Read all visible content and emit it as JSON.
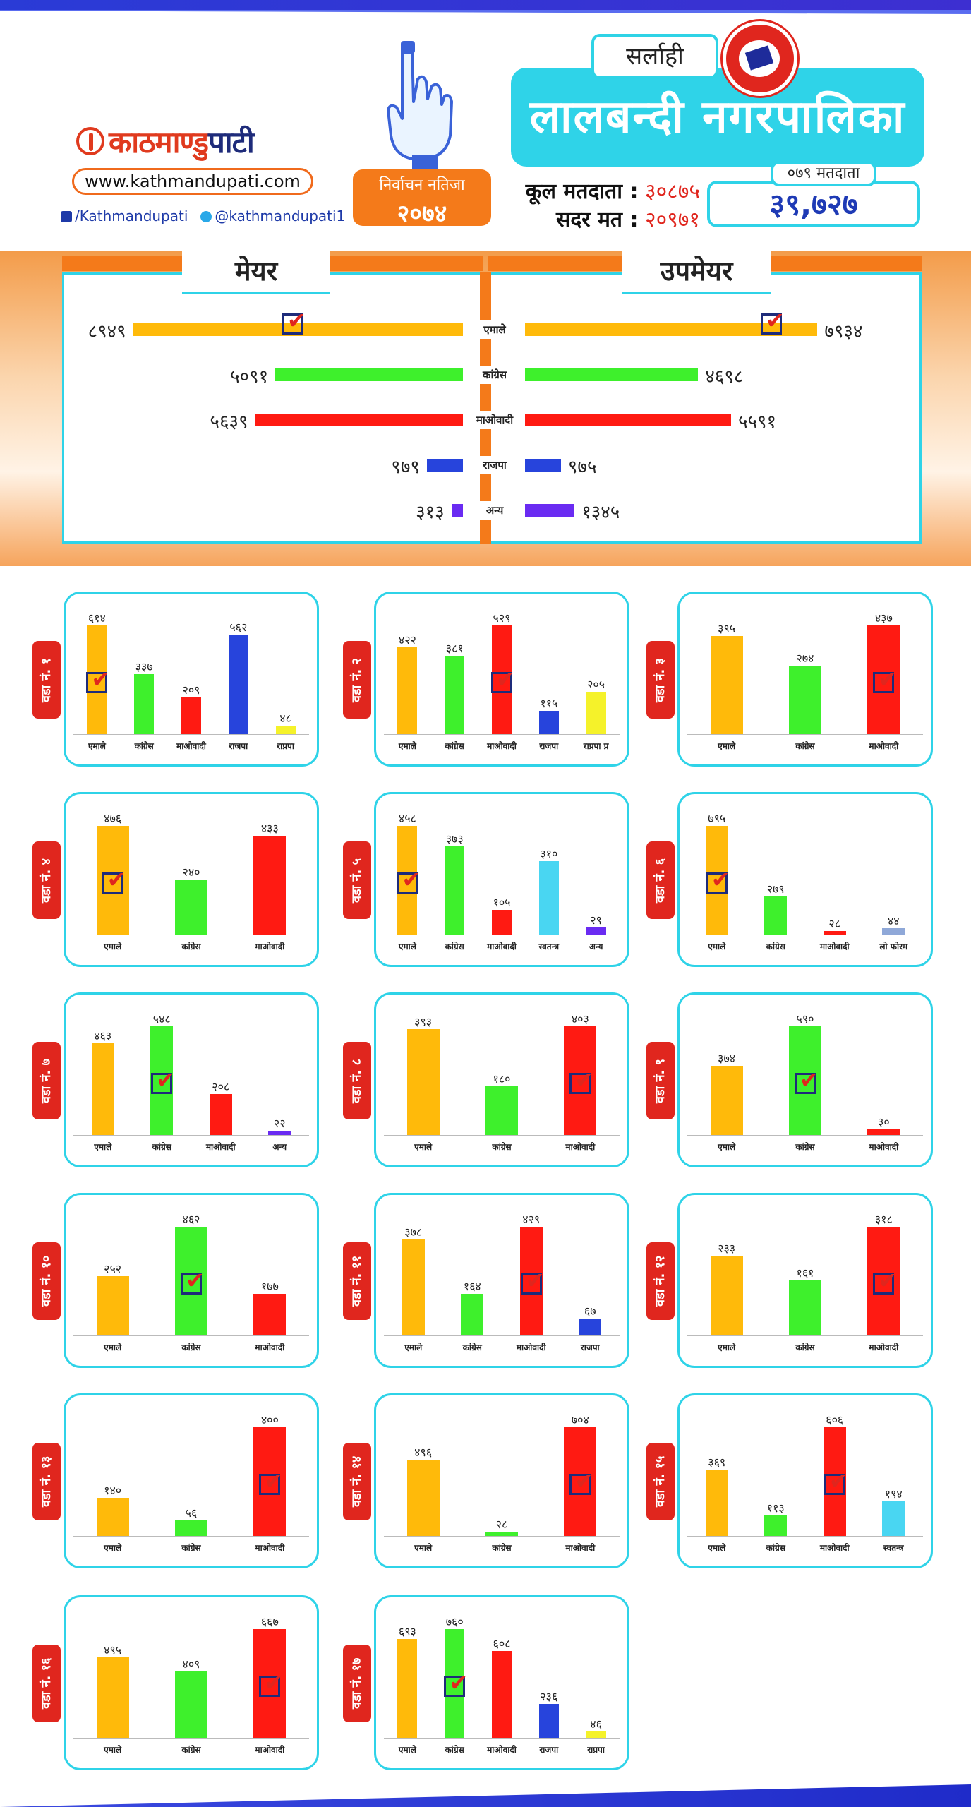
{
  "header": {
    "logo_main": "काठमाण्डु",
    "logo_accent": "पाटी",
    "website": "www.kathmandupati.com",
    "facebook": "/Kathmandupati",
    "twitter": "@kathmandupati1",
    "election_result_label": "निर्वाचन नतिजा",
    "election_year": "२०७४",
    "district": "सर्लाही",
    "municipality": "लालबन्दी नगरपालिका",
    "total_voters_label": "कूल मतदाता :",
    "total_voters_value": "३०८७५",
    "valid_votes_label": "सदर मत :",
    "valid_votes_value": "२०९७१",
    "voters_079_label": "०७९ मतदाता",
    "voters_079_value": "३९,७२७"
  },
  "colors": {
    "emale": "#ffba0a",
    "congress": "#3ef02c",
    "maoist": "#ff1a12",
    "rajpa": "#2744dc",
    "other_purple": "#6a2bf2",
    "yellow": "#f5f22a",
    "cyan": "#49d6f2",
    "grey_blue": "#8fa8d8",
    "accent_orange": "#f47a1a",
    "accent_cyan": "#2fd3e8",
    "ward_red": "#e0261e"
  },
  "chart_data": [
    {
      "type": "bar",
      "title": "मेयर",
      "orientation": "horizontal",
      "categories": [
        "एमाले",
        "कांग्रेस",
        "माओवादी",
        "राजपा",
        "अन्य"
      ],
      "values": [
        8949,
        5091,
        5639,
        979,
        313
      ],
      "labels": [
        "८९४९",
        "५०९१",
        "५६३९",
        "९७९",
        "३१३"
      ],
      "winner": "एमाले"
    },
    {
      "type": "bar",
      "title": "उपमेयर",
      "orientation": "horizontal",
      "categories": [
        "एमाले",
        "कांग्रेस",
        "माओवादी",
        "राजपा",
        "अन्य"
      ],
      "values": [
        7934,
        4698,
        5591,
        975,
        1345
      ],
      "labels": [
        "७९३४",
        "४६९८",
        "५५९१",
        "९७५",
        "१३४५"
      ],
      "winner": "एमाले"
    },
    {
      "type": "bar",
      "ward": "वडा नं. १",
      "categories": [
        "एमाले",
        "कांग्रेस",
        "माओवादी",
        "राजपा",
        "राप्रपा"
      ],
      "values": [
        614,
        337,
        209,
        562,
        48
      ],
      "labels": [
        "६१४",
        "३३७",
        "२०९",
        "५६२",
        "४८"
      ],
      "colors": [
        "emale",
        "congress",
        "maoist",
        "rajpa",
        "yellow"
      ],
      "winner": 0
    },
    {
      "type": "bar",
      "ward": "वडा नं. २",
      "categories": [
        "एमाले",
        "कांग्रेस",
        "माओवादी",
        "राजपा",
        "राप्रपा प्र"
      ],
      "values": [
        422,
        381,
        529,
        115,
        205
      ],
      "labels": [
        "४२२",
        "३८१",
        "५२९",
        "११५",
        "२०५"
      ],
      "colors": [
        "emale",
        "congress",
        "maoist",
        "rajpa",
        "yellow"
      ],
      "winner": 2
    },
    {
      "type": "bar",
      "ward": "वडा नं. ३",
      "categories": [
        "एमाले",
        "कांग्रेस",
        "माओवादी"
      ],
      "values": [
        395,
        274,
        437
      ],
      "labels": [
        "३९५",
        "२७४",
        "४३७"
      ],
      "colors": [
        "emale",
        "congress",
        "maoist"
      ],
      "winner": 2
    },
    {
      "type": "bar",
      "ward": "वडा नं. ४",
      "categories": [
        "एमाले",
        "कांग्रेस",
        "माओवादी"
      ],
      "values": [
        476,
        240,
        433
      ],
      "labels": [
        "४७६",
        "२४०",
        "४३३"
      ],
      "colors": [
        "emale",
        "congress",
        "maoist"
      ],
      "winner": 0
    },
    {
      "type": "bar",
      "ward": "वडा नं. ५",
      "categories": [
        "एमाले",
        "कांग्रेस",
        "माओवादी",
        "स्वतन्त्र",
        "अन्य"
      ],
      "values": [
        458,
        373,
        105,
        310,
        29
      ],
      "labels": [
        "४५८",
        "३७३",
        "१०५",
        "३१०",
        "२९"
      ],
      "colors": [
        "emale",
        "congress",
        "maoist",
        "cyan",
        "other_purple"
      ],
      "winner": 0
    },
    {
      "type": "bar",
      "ward": "वडा नं. ६",
      "categories": [
        "एमाले",
        "कांग्रेस",
        "माओवादी",
        "लो फोरम"
      ],
      "values": [
        795,
        279,
        28,
        44
      ],
      "labels": [
        "७९५",
        "२७९",
        "२८",
        "४४"
      ],
      "colors": [
        "emale",
        "congress",
        "maoist",
        "grey_blue"
      ],
      "winner": 0
    },
    {
      "type": "bar",
      "ward": "वडा नं. ७",
      "categories": [
        "एमाले",
        "कांग्रेस",
        "माओवादी",
        "अन्य"
      ],
      "values": [
        463,
        548,
        208,
        22
      ],
      "labels": [
        "४६३",
        "५४८",
        "२०८",
        "२२"
      ],
      "colors": [
        "emale",
        "congress",
        "maoist",
        "other_purple"
      ],
      "winner": 1
    },
    {
      "type": "bar",
      "ward": "वडा नं. ८",
      "categories": [
        "एमाले",
        "कांग्रेस",
        "माओवादी"
      ],
      "values": [
        393,
        180,
        403
      ],
      "labels": [
        "३९३",
        "१८०",
        "४०३"
      ],
      "colors": [
        "emale",
        "congress",
        "maoist"
      ],
      "winner": 2
    },
    {
      "type": "bar",
      "ward": "वडा नं. ९",
      "categories": [
        "एमाले",
        "कांग्रेस",
        "माओवादी"
      ],
      "values": [
        374,
        590,
        30
      ],
      "labels": [
        "३७४",
        "५९०",
        "३०"
      ],
      "colors": [
        "emale",
        "congress",
        "maoist"
      ],
      "winner": 1
    },
    {
      "type": "bar",
      "ward": "वडा नं. १०",
      "categories": [
        "एमाले",
        "कांग्रेस",
        "माओवादी"
      ],
      "values": [
        252,
        462,
        177
      ],
      "labels": [
        "२५२",
        "४६२",
        "१७७"
      ],
      "colors": [
        "emale",
        "congress",
        "maoist"
      ],
      "winner": 1
    },
    {
      "type": "bar",
      "ward": "वडा नं. ११",
      "categories": [
        "एमाले",
        "कांग्रेस",
        "माओवादी",
        "राजपा"
      ],
      "values": [
        378,
        164,
        429,
        67
      ],
      "labels": [
        "३७८",
        "१६४",
        "४२९",
        "६७"
      ],
      "colors": [
        "emale",
        "congress",
        "maoist",
        "rajpa"
      ],
      "winner": 2
    },
    {
      "type": "bar",
      "ward": "वडा नं. १२",
      "categories": [
        "एमाले",
        "कांग्रेस",
        "माओवादी"
      ],
      "values": [
        233,
        161,
        318
      ],
      "labels": [
        "२३३",
        "१६१",
        "३१८"
      ],
      "colors": [
        "emale",
        "congress",
        "maoist"
      ],
      "winner": 2
    },
    {
      "type": "bar",
      "ward": "वडा नं. १३",
      "categories": [
        "एमाले",
        "कांग्रेस",
        "माओवादी"
      ],
      "values": [
        140,
        56,
        400
      ],
      "labels": [
        "१४०",
        "५६",
        "४००"
      ],
      "colors": [
        "emale",
        "congress",
        "maoist"
      ],
      "winner": 2
    },
    {
      "type": "bar",
      "ward": "वडा नं. १४",
      "categories": [
        "एमाले",
        "कांग्रेस",
        "माओवादी"
      ],
      "values": [
        496,
        28,
        704
      ],
      "labels": [
        "४९६",
        "२८",
        "७०४"
      ],
      "colors": [
        "emale",
        "congress",
        "maoist"
      ],
      "winner": 2
    },
    {
      "type": "bar",
      "ward": "वडा नं. १५",
      "categories": [
        "एमाले",
        "कांग्रेस",
        "माओवादी",
        "स्वतन्त्र"
      ],
      "values": [
        369,
        113,
        606,
        194
      ],
      "labels": [
        "३६९",
        "११३",
        "६०६",
        "१९४"
      ],
      "colors": [
        "emale",
        "congress",
        "maoist",
        "cyan"
      ],
      "winner": 2
    },
    {
      "type": "bar",
      "ward": "वडा नं. १६",
      "categories": [
        "एमाले",
        "कांग्रेस",
        "माओवादी"
      ],
      "values": [
        495,
        409,
        667
      ],
      "labels": [
        "४९५",
        "४०९",
        "६६७"
      ],
      "colors": [
        "emale",
        "congress",
        "maoist"
      ],
      "winner": 2
    },
    {
      "type": "bar",
      "ward": "वडा नं. १७",
      "categories": [
        "एमाले",
        "कांग्रेस",
        "माओवादी",
        "राजपा",
        "राप्रपा"
      ],
      "values": [
        693,
        760,
        608,
        236,
        46
      ],
      "labels": [
        "६९३",
        "७६०",
        "६०८",
        "२३६",
        "४६"
      ],
      "colors": [
        "emale",
        "congress",
        "maoist",
        "rajpa",
        "yellow"
      ],
      "winner": 1
    }
  ]
}
